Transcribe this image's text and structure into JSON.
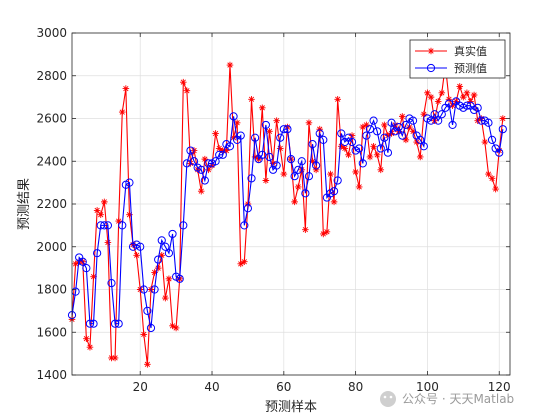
{
  "chart_data": {
    "type": "line",
    "xlabel": "预测样本",
    "ylabel": "预测结果",
    "xlim": [
      1,
      123
    ],
    "ylim": [
      1400,
      3000
    ],
    "xticks": [
      20,
      40,
      60,
      80,
      100,
      120
    ],
    "yticks": [
      1400,
      1600,
      1800,
      2000,
      2200,
      2400,
      2600,
      2800,
      3000
    ],
    "grid": true,
    "legend_position": "top-right",
    "colors": {
      "actual": "#ff0000",
      "predicted": "#0000ff"
    },
    "series": [
      {
        "name": "真实值",
        "marker": "asterisk",
        "values": [
          1660,
          1920,
          1930,
          1930,
          1570,
          1530,
          1860,
          2170,
          2150,
          2210,
          2020,
          1480,
          1480,
          2120,
          2630,
          2740,
          2150,
          2010,
          1960,
          1800,
          1590,
          1450,
          1800,
          1880,
          1900,
          1960,
          1760,
          1850,
          1630,
          1620,
          1850,
          2770,
          2730,
          2390,
          2450,
          2360,
          2260,
          2410,
          2360,
          2380,
          2530,
          2460,
          2450,
          2450,
          2850,
          2510,
          2580,
          1920,
          1930,
          2200,
          2690,
          2420,
          2410,
          2650,
          2310,
          2540,
          2390,
          2590,
          2460,
          2340,
          2560,
          2410,
          2210,
          2280,
          2360,
          2080,
          2580,
          2400,
          2360,
          2550,
          2060,
          2070,
          2340,
          2210,
          2690,
          2470,
          2460,
          2430,
          2520,
          2350,
          2280,
          2560,
          2570,
          2420,
          2470,
          2430,
          2360,
          2570,
          2520,
          2530,
          2570,
          2540,
          2610,
          2500,
          2560,
          2540,
          2490,
          2420,
          2620,
          2720,
          2700,
          2590,
          2680,
          2720,
          2850,
          2690,
          2660,
          2680,
          2750,
          2700,
          2720,
          2680,
          2710,
          2590,
          2600,
          2490,
          2340,
          2320,
          2270,
          2450,
          2600
        ],
        "legend_label": "真实值"
      },
      {
        "name": "预测值",
        "marker": "circle",
        "values": [
          1680,
          1790,
          1950,
          1930,
          1900,
          1640,
          1640,
          1970,
          2100,
          2100,
          2100,
          1830,
          1640,
          1640,
          2100,
          2290,
          2300,
          2000,
          2010,
          2000,
          1800,
          1700,
          1620,
          1800,
          1940,
          2030,
          2000,
          1970,
          2060,
          1860,
          1850,
          2100,
          2390,
          2450,
          2400,
          2370,
          2360,
          2310,
          2390,
          2390,
          2400,
          2430,
          2430,
          2480,
          2470,
          2610,
          2500,
          2520,
          2100,
          2180,
          2320,
          2510,
          2410,
          2430,
          2570,
          2420,
          2360,
          2380,
          2510,
          2550,
          2550,
          2410,
          2330,
          2360,
          2400,
          2250,
          2330,
          2480,
          2380,
          2530,
          2500,
          2230,
          2250,
          2260,
          2310,
          2530,
          2490,
          2510,
          2490,
          2450,
          2460,
          2390,
          2520,
          2550,
          2590,
          2540,
          2460,
          2510,
          2440,
          2580,
          2540,
          2560,
          2520,
          2570,
          2600,
          2590,
          2520,
          2500,
          2470,
          2600,
          2590,
          2620,
          2590,
          2620,
          2650,
          2670,
          2570,
          2680,
          2660,
          2650,
          2660,
          2660,
          2640,
          2650,
          2590,
          2590,
          2580,
          2500,
          2460,
          2440,
          2550
        ],
        "legend_label": "预测值"
      }
    ]
  },
  "watermark": {
    "text": "公众号 · 天天Matlab"
  }
}
